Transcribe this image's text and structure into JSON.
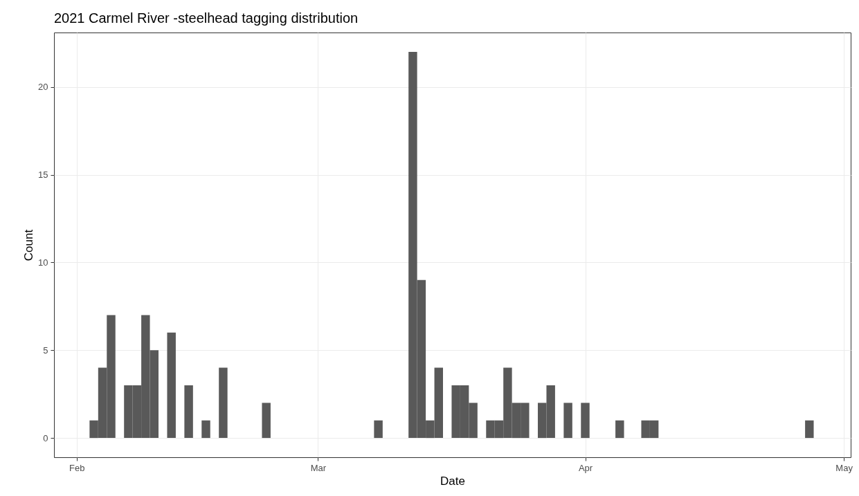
{
  "chart_data": {
    "type": "histogram",
    "title": "2021 Carmel River -steelhead tagging distribution",
    "xlabel": "Date",
    "ylabel": "Count",
    "bins": [
      "2021-02-02T12:00",
      "2021-02-03T12:00",
      "2021-02-04T12:00",
      "2021-02-05T12:00",
      "2021-02-06T12:00",
      "2021-02-07T12:00",
      "2021-02-08T12:00",
      "2021-02-09T12:00",
      "2021-02-10T12:00",
      "2021-02-11T12:00",
      "2021-02-12T12:00",
      "2021-02-13T12:00",
      "2021-02-14T12:00",
      "2021-02-15T12:00",
      "2021-02-16T12:00",
      "2021-02-17T12:00",
      "2021-02-18T12:00",
      "2021-02-19T12:00",
      "2021-02-20T12:00",
      "2021-02-21T12:00",
      "2021-02-22T12:00",
      "2021-02-23T12:00",
      "2021-02-24T12:00",
      "2021-02-25T12:00",
      "2021-02-26T12:00",
      "2021-02-27T12:00",
      "2021-02-28T12:00",
      "2021-03-01T12:00",
      "2021-03-02T12:00",
      "2021-03-03T12:00",
      "2021-03-04T12:00",
      "2021-03-05T12:00",
      "2021-03-06T12:00",
      "2021-03-07T12:00",
      "2021-03-08T12:00",
      "2021-03-09T12:00",
      "2021-03-10T12:00",
      "2021-03-11T12:00",
      "2021-03-12T12:00",
      "2021-03-13T12:00",
      "2021-03-14T12:00",
      "2021-03-15T12:00",
      "2021-03-16T12:00",
      "2021-03-17T12:00",
      "2021-03-18T12:00",
      "2021-03-19T12:00",
      "2021-03-20T12:00",
      "2021-03-21T12:00",
      "2021-03-22T12:00",
      "2021-03-23T12:00",
      "2021-03-24T12:00",
      "2021-03-25T12:00",
      "2021-03-26T12:00",
      "2021-03-27T12:00",
      "2021-03-28T12:00",
      "2021-03-29T12:00",
      "2021-03-30T12:00",
      "2021-03-31T12:00",
      "2021-04-01T12:00",
      "2021-04-02T12:00",
      "2021-04-03T12:00",
      "2021-04-04T12:00",
      "2021-04-05T12:00",
      "2021-04-06T12:00",
      "2021-04-07T12:00",
      "2021-04-08T12:00",
      "2021-04-09T12:00",
      "2021-04-10T12:00",
      "2021-04-11T12:00",
      "2021-04-12T12:00",
      "2021-04-13T12:00",
      "2021-04-14T12:00",
      "2021-04-15T12:00",
      "2021-04-16T12:00",
      "2021-04-17T12:00",
      "2021-04-18T12:00",
      "2021-04-19T12:00",
      "2021-04-20T12:00",
      "2021-04-21T12:00",
      "2021-04-22T12:00",
      "2021-04-23T12:00",
      "2021-04-24T12:00",
      "2021-04-25T12:00",
      "2021-04-26T12:00",
      "2021-04-27T12:00"
    ],
    "values": [
      1,
      4,
      7,
      0,
      3,
      3,
      7,
      5,
      0,
      6,
      0,
      3,
      0,
      1,
      0,
      4,
      0,
      0,
      0,
      0,
      2,
      0,
      0,
      0,
      0,
      0,
      0,
      0,
      0,
      0,
      0,
      0,
      0,
      1,
      0,
      0,
      0,
      22,
      9,
      1,
      4,
      0,
      3,
      3,
      2,
      0,
      1,
      1,
      4,
      2,
      2,
      0,
      2,
      3,
      0,
      2,
      0,
      2,
      0,
      0,
      0,
      1,
      0,
      0,
      1,
      1,
      0,
      0,
      0,
      0,
      0,
      0,
      0,
      0,
      0,
      0,
      0,
      0,
      0,
      0,
      0,
      0,
      0,
      1
    ],
    "color": "#595959",
    "xlim": [
      "2021-01-29T09:00",
      "2021-05-01T19:00"
    ],
    "xticks": [
      {
        "value": "2021-02-01",
        "label": "Feb"
      },
      {
        "value": "2021-03-01",
        "label": "Mar"
      },
      {
        "value": "2021-04-01",
        "label": "Apr"
      },
      {
        "value": "2021-05-01",
        "label": "May"
      }
    ],
    "ylim": [
      -1.1,
      23.1
    ],
    "yticks": [
      0,
      5,
      10,
      15,
      20
    ],
    "grid": true
  }
}
